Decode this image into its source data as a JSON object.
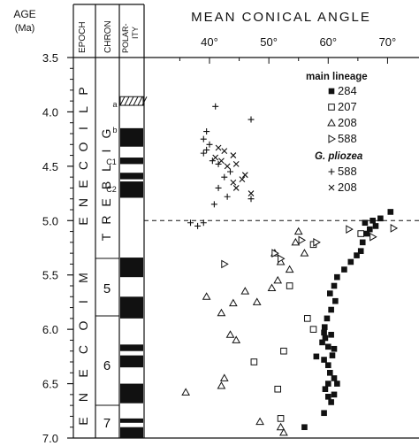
{
  "header": {
    "age": "AGE",
    "age_unit": "(Ma)",
    "epoch": "EPOCH",
    "chron": "CHRON",
    "polarity_line1": "POLAR-",
    "polarity_line2": "ITY",
    "title": "MEAN CONICAL ANGLE"
  },
  "epochs": {
    "pliocene": "PLIOCENE",
    "miocene": "MIOCENE"
  },
  "chrons": {
    "gilbert": "GILBERT",
    "c5": "5",
    "c6": "6",
    "c7": "7",
    "sub_a": "a",
    "sub_b": "b",
    "sub_c1": "C1",
    "sub_c2": "C2"
  },
  "legend": {
    "main_lineage": "main lineage",
    "g_pliozea": "G. pliozea",
    "items": [
      {
        "symbol": "square-filled",
        "label": "284"
      },
      {
        "symbol": "square-open",
        "label": "207"
      },
      {
        "symbol": "triangle-up-open",
        "label": "208"
      },
      {
        "symbol": "triangle-right-open",
        "label": "588"
      },
      {
        "symbol": "plus",
        "label": "+588"
      },
      {
        "symbol": "cross",
        "label": "x208"
      }
    ]
  },
  "chart_data": {
    "type": "scatter",
    "title": "MEAN CONICAL ANGLE",
    "ylabel": "AGE (Ma)",
    "xlim": [
      33,
      75
    ],
    "ylim": [
      3.5,
      7.0
    ],
    "x_ticks": [
      "40°",
      "50°",
      "60°",
      "70°"
    ],
    "x_tick_values": [
      40,
      50,
      60,
      70
    ],
    "y_ticks": [
      "3.5",
      "4.0",
      "4.5",
      "5.0",
      "5.5",
      "6.0",
      "6.5",
      "7.0"
    ],
    "y_tick_values": [
      3.5,
      4.0,
      4.5,
      5.0,
      5.5,
      6.0,
      6.5,
      7.0
    ],
    "boundary_age": 5.0,
    "series": [
      {
        "name": "284",
        "marker": "square-filled",
        "points": [
          [
            70.5,
            4.92
          ],
          [
            68.8,
            4.98
          ],
          [
            67.5,
            5.0
          ],
          [
            66.2,
            5.02
          ],
          [
            68.0,
            5.05
          ],
          [
            67.0,
            5.08
          ],
          [
            66.5,
            5.12
          ],
          [
            65.8,
            5.2
          ],
          [
            65.5,
            5.28
          ],
          [
            64.8,
            5.32
          ],
          [
            63.8,
            5.38
          ],
          [
            62.7,
            5.45
          ],
          [
            61.5,
            5.52
          ],
          [
            61.0,
            5.6
          ],
          [
            60.3,
            5.67
          ],
          [
            61.2,
            5.74
          ],
          [
            60.5,
            5.82
          ],
          [
            59.8,
            5.9
          ],
          [
            59.4,
            5.98
          ],
          [
            59.3,
            6.03
          ],
          [
            60.5,
            6.05
          ],
          [
            59.5,
            6.08
          ],
          [
            59.0,
            6.12
          ],
          [
            60.0,
            6.16
          ],
          [
            61.0,
            6.18
          ],
          [
            58.0,
            6.25
          ],
          [
            60.7,
            6.24
          ],
          [
            59.3,
            6.28
          ],
          [
            60.0,
            6.33
          ],
          [
            60.3,
            6.4
          ],
          [
            61.0,
            6.45
          ],
          [
            60.0,
            6.5
          ],
          [
            61.5,
            6.5
          ],
          [
            59.5,
            6.55
          ],
          [
            61.0,
            6.6
          ],
          [
            60.0,
            6.62
          ],
          [
            60.5,
            6.67
          ],
          [
            59.3,
            6.77
          ],
          [
            56.0,
            6.9
          ]
        ]
      },
      {
        "name": "207",
        "marker": "square-open",
        "points": [
          [
            65.5,
            5.12
          ],
          [
            57.5,
            5.22
          ],
          [
            53.5,
            5.6
          ],
          [
            56.5,
            5.9
          ],
          [
            57.5,
            6.0
          ],
          [
            51.5,
            6.55
          ],
          [
            52.5,
            6.2
          ],
          [
            47.5,
            6.3
          ],
          [
            52.0,
            6.82
          ]
        ]
      },
      {
        "name": "208",
        "marker": "triangle-up-open",
        "points": [
          [
            55.0,
            5.1
          ],
          [
            54.5,
            5.2
          ],
          [
            56.0,
            5.3
          ],
          [
            51.0,
            5.3
          ],
          [
            52.0,
            5.38
          ],
          [
            53.5,
            5.45
          ],
          [
            51.5,
            5.55
          ],
          [
            50.5,
            5.62
          ],
          [
            46.0,
            5.65
          ],
          [
            48.0,
            5.75
          ],
          [
            39.5,
            5.7
          ],
          [
            44.0,
            5.76
          ],
          [
            42.0,
            5.85
          ],
          [
            43.5,
            6.05
          ],
          [
            44.5,
            6.1
          ],
          [
            42.5,
            6.45
          ],
          [
            42.0,
            6.52
          ],
          [
            36.0,
            6.58
          ],
          [
            48.5,
            6.85
          ],
          [
            52.0,
            6.9
          ],
          [
            52.5,
            6.95
          ]
        ]
      },
      {
        "name": "588",
        "marker": "triangle-right-open",
        "points": [
          [
            71.0,
            5.07
          ],
          [
            67.5,
            5.15
          ],
          [
            58.0,
            5.2
          ],
          [
            51.0,
            5.3
          ],
          [
            55.5,
            5.18
          ],
          [
            63.5,
            5.08
          ],
          [
            42.5,
            5.4
          ],
          [
            52.0,
            5.35
          ]
        ]
      },
      {
        "name": "+588",
        "marker": "plus",
        "points": [
          [
            41.0,
            3.95
          ],
          [
            47.0,
            4.07
          ],
          [
            39.5,
            4.18
          ],
          [
            39.0,
            4.25
          ],
          [
            40.0,
            4.3
          ],
          [
            39.5,
            4.35
          ],
          [
            39.0,
            4.38
          ],
          [
            40.5,
            4.45
          ],
          [
            41.5,
            4.48
          ],
          [
            43.5,
            4.55
          ],
          [
            42.5,
            4.6
          ],
          [
            41.5,
            4.7
          ],
          [
            43.0,
            4.78
          ],
          [
            40.8,
            4.85
          ],
          [
            39.0,
            5.02
          ],
          [
            36.8,
            5.02
          ],
          [
            38.0,
            5.05
          ],
          [
            47.0,
            4.8
          ]
        ]
      },
      {
        "name": "x208",
        "marker": "cross",
        "points": [
          [
            41.5,
            4.33
          ],
          [
            42.5,
            4.36
          ],
          [
            41.0,
            4.42
          ],
          [
            44.0,
            4.4
          ],
          [
            42.0,
            4.45
          ],
          [
            44.5,
            4.48
          ],
          [
            43.0,
            4.5
          ],
          [
            46.0,
            4.58
          ],
          [
            45.5,
            4.62
          ],
          [
            44.0,
            4.65
          ],
          [
            44.5,
            4.7
          ],
          [
            47.0,
            4.75
          ]
        ]
      }
    ]
  }
}
